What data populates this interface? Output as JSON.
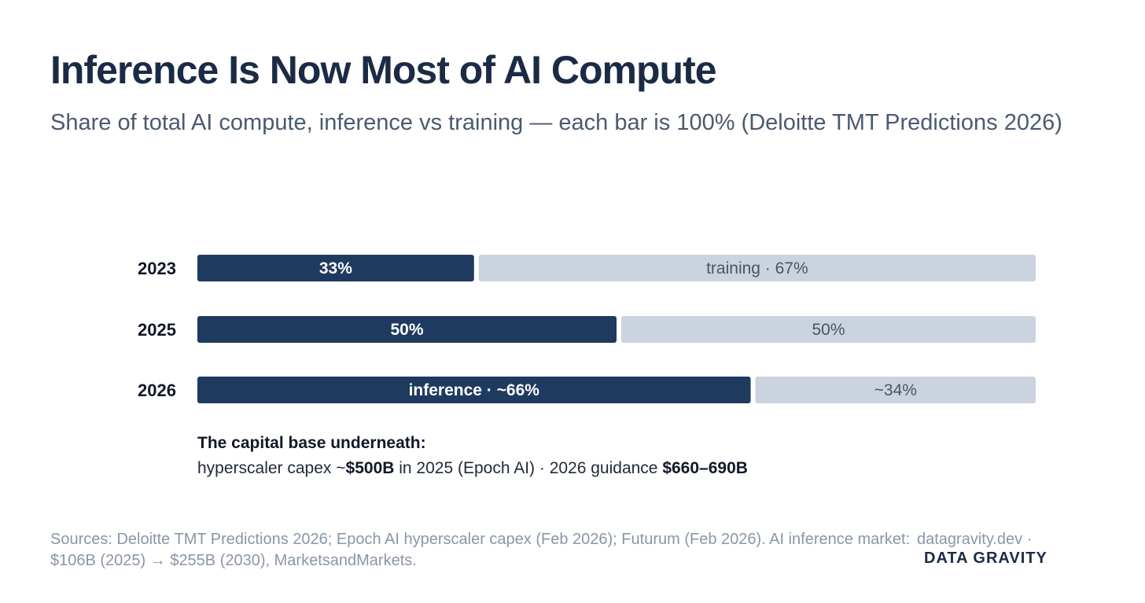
{
  "title": "Inference Is Now Most of AI Compute",
  "subtitle": "Share of total AI compute, inference vs training — each bar is 100% (Deloitte TMT Predictions 2026)",
  "colors": {
    "inference": "#1e3a5f",
    "training": "#cbd3de",
    "title": "#1b2b45",
    "muted": "#8a96a8"
  },
  "chart_data": {
    "type": "bar",
    "stacked": true,
    "orientation": "horizontal",
    "categories": [
      "2023",
      "2025",
      "2026"
    ],
    "series": [
      {
        "name": "inference",
        "values": [
          33,
          50,
          66
        ]
      },
      {
        "name": "training",
        "values": [
          67,
          50,
          34
        ]
      }
    ],
    "data_labels": [
      [
        "33%",
        "training · 67%"
      ],
      [
        "50%",
        "50%"
      ],
      [
        "inference · ~66%",
        "~34%"
      ]
    ],
    "xlim": [
      0,
      100
    ],
    "grid": false
  },
  "capital": {
    "heading": "The capital base underneath:",
    "prefix": "hyperscaler capex ~",
    "capex_2025": "$500B",
    "middle": " in 2025 (Epoch AI) · 2026 guidance ",
    "guidance_2026": "$660–690B"
  },
  "footer": {
    "sources": "Sources: Deloitte TMT Predictions 2026; Epoch AI hyperscaler capex (Feb 2026); Futurum (Feb 2026). AI inference market: $106B (2025) → $255B (2030), MarketsandMarkets.",
    "site": "datagravity.dev ·",
    "brand": "DATA GRAVITY"
  }
}
